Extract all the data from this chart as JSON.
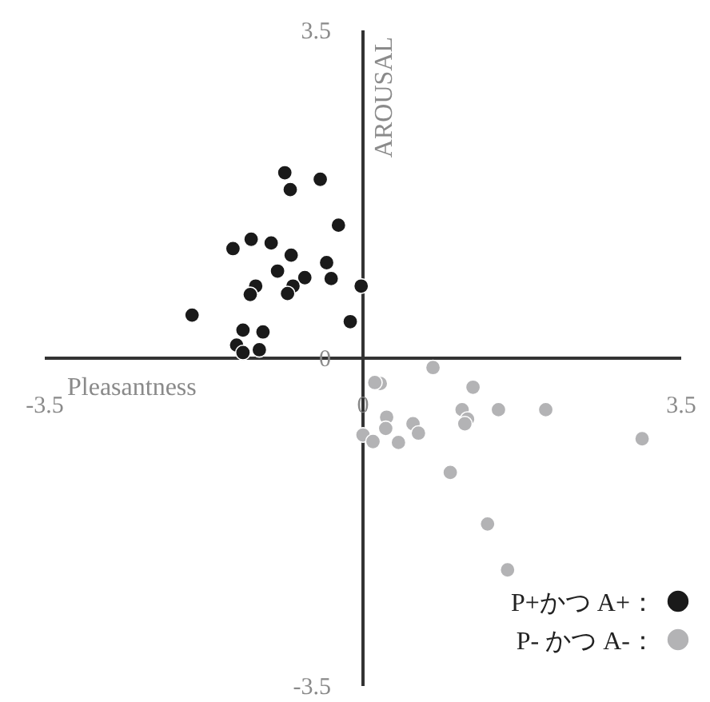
{
  "chart_data": {
    "type": "scatter",
    "xlabel": "Pleasantness",
    "ylabel": "AROUSAL",
    "xlim": [
      -3.5,
      3.5
    ],
    "ylim": [
      -3.5,
      3.5
    ],
    "xticks": [
      -3.5,
      0,
      3.5
    ],
    "yticks": [
      -3.5,
      0,
      3.5
    ],
    "grid": false,
    "legend": "bottom right",
    "marker": "circle",
    "series": [
      {
        "name": "P+かつ A+：",
        "color": "#1a1a1a",
        "x": [
          -0.86,
          -0.8,
          -0.47,
          -0.27,
          -1.43,
          -1.23,
          -1.01,
          -0.79,
          -0.4,
          -0.94,
          -0.64,
          -0.35,
          -1.18,
          -1.24,
          -0.77,
          -0.83,
          -0.02,
          -1.88,
          -0.14,
          -1.32,
          -1.1,
          -1.39,
          -1.32,
          -1.14
        ],
        "values": [
          1.98,
          1.8,
          1.91,
          1.42,
          1.17,
          1.27,
          1.23,
          1.1,
          1.02,
          0.93,
          0.86,
          0.85,
          0.77,
          0.68,
          0.77,
          0.69,
          0.77,
          0.46,
          0.39,
          0.3,
          0.28,
          0.14,
          0.06,
          0.09
        ]
      },
      {
        "name": "P- かつ A-：",
        "color": "#b3b3b5",
        "x": [
          0.77,
          0.19,
          0.13,
          1.21,
          1.49,
          2.01,
          1.09,
          1.15,
          1.12,
          0.26,
          0.25,
          0,
          0.11,
          0.39,
          0.55,
          0.61,
          3.07,
          0.96,
          1.37,
          1.59
        ],
        "values": [
          -0.1,
          -0.27,
          -0.26,
          -0.31,
          -0.55,
          -0.55,
          -0.55,
          -0.65,
          -0.7,
          -0.63,
          -0.75,
          -0.82,
          -0.89,
          -0.9,
          -0.7,
          -0.8,
          -0.86,
          -1.22,
          -1.77,
          -2.26
        ]
      }
    ]
  }
}
